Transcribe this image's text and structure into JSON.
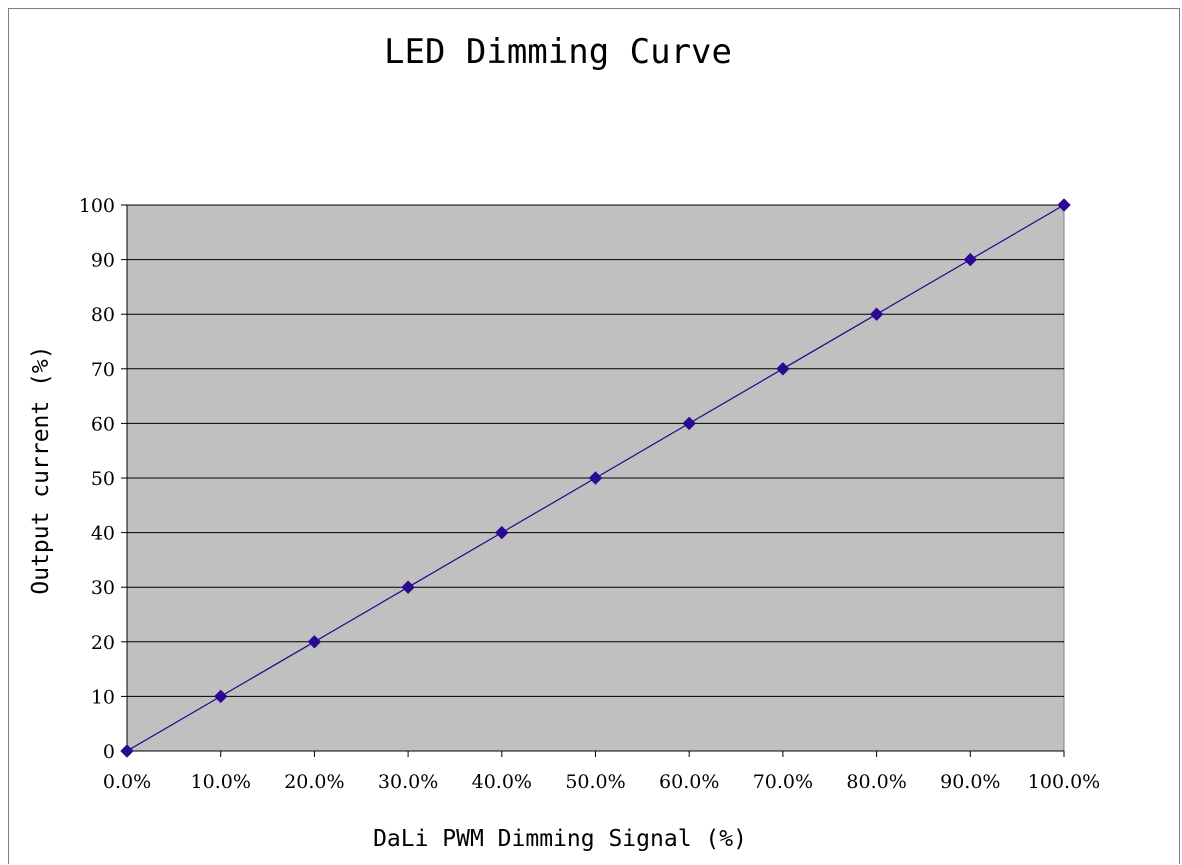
{
  "chart_data": {
    "type": "line",
    "title": "LED Dimming Curve",
    "xlabel": "DaLi PWM Dimming Signal (%)",
    "ylabel": "Output current (%)",
    "x": [
      0,
      10,
      20,
      30,
      40,
      50,
      60,
      70,
      80,
      90,
      100
    ],
    "x_tick_labels": [
      "0.0%",
      "10.0%",
      "20.0%",
      "30.0%",
      "40.0%",
      "50.0%",
      "60.0%",
      "70.0%",
      "80.0%",
      "90.0%",
      "100.0%"
    ],
    "y_ticks": [
      0,
      10,
      20,
      30,
      40,
      50,
      60,
      70,
      80,
      90,
      100
    ],
    "series": [
      {
        "values": [
          0,
          10,
          20,
          30,
          40,
          50,
          60,
          70,
          80,
          90,
          100
        ]
      }
    ],
    "xlim": [
      0,
      100
    ],
    "ylim": [
      0,
      100
    ],
    "grid": true,
    "marker": "diamond",
    "colors": {
      "series": "#1a0a8c",
      "marker": "#2a0a90",
      "plot_background": "#c0c0c0",
      "gridline": "#000000"
    }
  }
}
